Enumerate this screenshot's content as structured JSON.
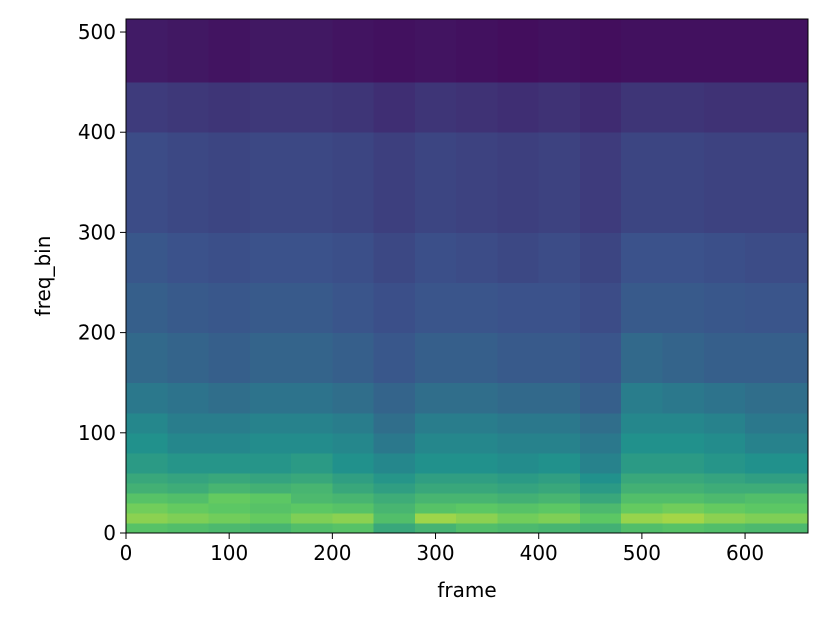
{
  "chart_data": {
    "type": "heatmap",
    "xlabel": "frame",
    "ylabel": "freq_bin",
    "colormap": "viridis",
    "x_edges": [
      0,
      40,
      80,
      120,
      160,
      200,
      240,
      280,
      320,
      360,
      400,
      440,
      480,
      520,
      560,
      600,
      661
    ],
    "y_edges": [
      0,
      10,
      20,
      30,
      40,
      50,
      60,
      80,
      100,
      120,
      150,
      200,
      250,
      300,
      400,
      450,
      513
    ],
    "zlim": [
      0,
      1
    ],
    "values": [
      [
        0.72,
        0.7,
        0.68,
        0.66,
        0.7,
        0.72,
        0.6,
        0.65,
        0.7,
        0.68,
        0.66,
        0.64,
        0.7,
        0.72,
        0.7,
        0.68
      ],
      [
        0.82,
        0.8,
        0.78,
        0.76,
        0.8,
        0.82,
        0.7,
        0.85,
        0.82,
        0.78,
        0.8,
        0.74,
        0.84,
        0.86,
        0.82,
        0.8
      ],
      [
        0.78,
        0.76,
        0.74,
        0.72,
        0.74,
        0.72,
        0.66,
        0.72,
        0.74,
        0.72,
        0.74,
        0.68,
        0.76,
        0.78,
        0.76,
        0.74
      ],
      [
        0.72,
        0.7,
        0.76,
        0.74,
        0.68,
        0.66,
        0.62,
        0.66,
        0.66,
        0.64,
        0.66,
        0.6,
        0.7,
        0.7,
        0.68,
        0.7
      ],
      [
        0.64,
        0.62,
        0.66,
        0.64,
        0.66,
        0.6,
        0.56,
        0.6,
        0.6,
        0.58,
        0.6,
        0.54,
        0.64,
        0.64,
        0.62,
        0.62
      ],
      [
        0.6,
        0.58,
        0.6,
        0.58,
        0.6,
        0.56,
        0.52,
        0.56,
        0.56,
        0.54,
        0.56,
        0.5,
        0.6,
        0.6,
        0.58,
        0.56
      ],
      [
        0.54,
        0.52,
        0.52,
        0.52,
        0.54,
        0.5,
        0.46,
        0.5,
        0.5,
        0.48,
        0.5,
        0.44,
        0.54,
        0.54,
        0.52,
        0.5
      ],
      [
        0.5,
        0.46,
        0.46,
        0.48,
        0.48,
        0.46,
        0.4,
        0.46,
        0.46,
        0.44,
        0.44,
        0.4,
        0.5,
        0.5,
        0.48,
        0.44
      ],
      [
        0.46,
        0.42,
        0.42,
        0.44,
        0.44,
        0.42,
        0.36,
        0.42,
        0.42,
        0.4,
        0.4,
        0.36,
        0.46,
        0.46,
        0.44,
        0.4
      ],
      [
        0.4,
        0.38,
        0.36,
        0.38,
        0.38,
        0.36,
        0.32,
        0.36,
        0.36,
        0.34,
        0.34,
        0.3,
        0.42,
        0.4,
        0.38,
        0.36
      ],
      [
        0.34,
        0.32,
        0.3,
        0.32,
        0.32,
        0.3,
        0.27,
        0.3,
        0.3,
        0.28,
        0.28,
        0.26,
        0.34,
        0.32,
        0.3,
        0.3
      ],
      [
        0.3,
        0.28,
        0.27,
        0.28,
        0.28,
        0.26,
        0.24,
        0.26,
        0.26,
        0.25,
        0.25,
        0.23,
        0.28,
        0.28,
        0.27,
        0.26
      ],
      [
        0.27,
        0.25,
        0.24,
        0.25,
        0.25,
        0.24,
        0.22,
        0.24,
        0.23,
        0.22,
        0.23,
        0.21,
        0.25,
        0.25,
        0.24,
        0.23
      ],
      [
        0.23,
        0.22,
        0.21,
        0.22,
        0.22,
        0.21,
        0.19,
        0.21,
        0.2,
        0.19,
        0.2,
        0.18,
        0.21,
        0.21,
        0.2,
        0.2
      ],
      [
        0.18,
        0.17,
        0.16,
        0.17,
        0.17,
        0.16,
        0.14,
        0.16,
        0.15,
        0.14,
        0.15,
        0.13,
        0.16,
        0.16,
        0.15,
        0.15
      ],
      [
        0.08,
        0.07,
        0.06,
        0.07,
        0.07,
        0.06,
        0.05,
        0.06,
        0.05,
        0.04,
        0.05,
        0.04,
        0.05,
        0.05,
        0.05,
        0.05
      ]
    ],
    "xlim": [
      0,
      661
    ],
    "ylim": [
      0,
      513
    ],
    "xticks": [
      0,
      100,
      200,
      300,
      400,
      500,
      600
    ],
    "yticks": [
      0,
      100,
      200,
      300,
      400,
      500
    ]
  }
}
